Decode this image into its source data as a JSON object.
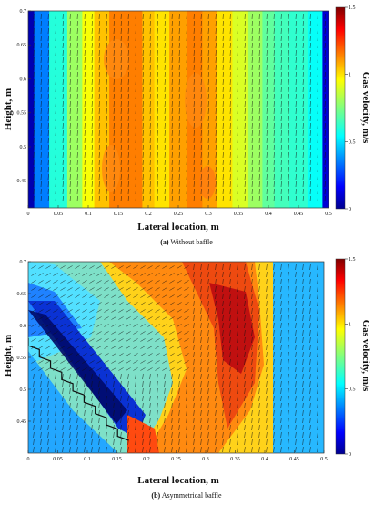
{
  "chart_data": [
    {
      "type": "heatmap",
      "title": "",
      "caption_letter": "(a)",
      "caption_text": " Without baffle",
      "xlabel": "Lateral location, m",
      "ylabel": "Height, m",
      "xlim": [
        0,
        0.5
      ],
      "ylim": [
        0.41,
        0.7
      ],
      "xticks": [
        "0",
        "0.05",
        "0.1",
        "0.15",
        "0.2",
        "0.25",
        "0.3",
        "0.35",
        "0.4",
        "0.45",
        "0.5"
      ],
      "yticks": [
        "0.45",
        "0.5",
        "0.55",
        "0.6",
        "0.65",
        "0.7"
      ],
      "colorbar": {
        "label": "Gas velocity, m/s",
        "min": 0,
        "max": 1.5,
        "ticks": [
          "0",
          "0.5",
          "1",
          "1.5"
        ]
      },
      "grid": false,
      "velocity_field": "mostly vertical upward vectors",
      "profile_x": [
        0,
        0.02,
        0.05,
        0.08,
        0.1,
        0.12,
        0.15,
        0.18,
        0.2,
        0.22,
        0.25,
        0.28,
        0.3,
        0.33,
        0.35,
        0.38,
        0.4,
        0.42,
        0.45,
        0.48,
        0.5
      ],
      "profile_velocity": [
        0.05,
        0.35,
        0.6,
        0.8,
        0.95,
        1.05,
        1.15,
        1.15,
        1.05,
        1.0,
        1.1,
        1.15,
        1.1,
        1.0,
        0.9,
        0.8,
        0.7,
        0.65,
        0.62,
        0.55,
        0.1
      ]
    },
    {
      "type": "heatmap",
      "title": "",
      "caption_letter": "(b)",
      "caption_text": " Asymmetrical baffle",
      "xlabel": "Lateral location, m",
      "ylabel": "Height, m",
      "xlim": [
        0,
        0.5
      ],
      "ylim": [
        0.4,
        0.7
      ],
      "xticks": [
        "0",
        "0.05",
        "0.1",
        "0.15",
        "0.2",
        "0.25",
        "0.3",
        "0.35",
        "0.4",
        "0.45",
        "0.5"
      ],
      "yticks": [
        "0.45",
        "0.5",
        "0.55",
        "0.6",
        "0.65",
        "0.7"
      ],
      "colorbar": {
        "label": "Gas velocity, m/s",
        "min": 0,
        "max": 1.5,
        "ticks": [
          "0",
          "0.5",
          "1",
          "1.5"
        ]
      },
      "grid": false,
      "baffle_line": {
        "x": [
          0.0,
          0.17
        ],
        "y": [
          0.58,
          0.42
        ]
      },
      "velocity_field": "vectors deflected right above the baffle, vertical in the core",
      "high_velocity_core_x": [
        0.2,
        0.38
      ],
      "peak_velocity": 1.45
    }
  ]
}
